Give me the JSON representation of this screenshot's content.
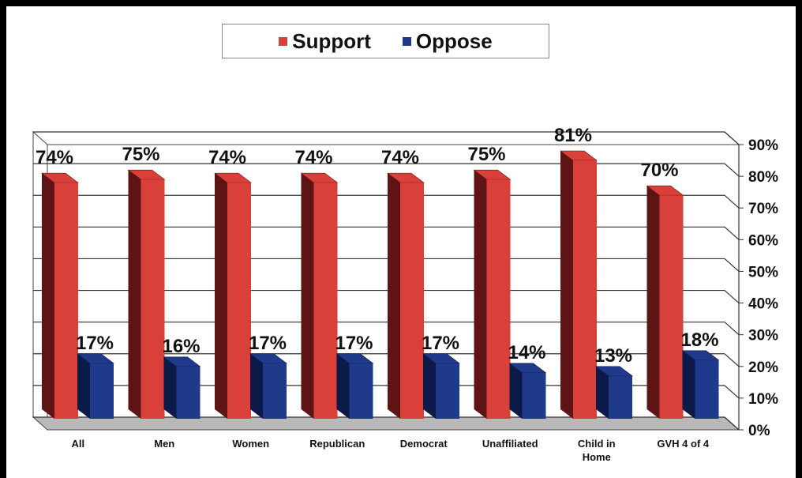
{
  "colors": {
    "support": "#d9403a",
    "support_dark": "#5e1414",
    "oppose": "#1f3a8a",
    "oppose_dark": "#0c1a4a",
    "background": "#ffffff"
  },
  "legend": {
    "support_label": "Support",
    "oppose_label": "Oppose"
  },
  "chart_data": {
    "type": "bar",
    "categories": [
      "All",
      "Men",
      "Women",
      "Republican",
      "Democrat",
      "Unaffiliated",
      "Child in Home",
      "GVH 4 of 4"
    ],
    "series": [
      {
        "name": "Support",
        "values": [
          74,
          75,
          74,
          74,
          74,
          75,
          81,
          70
        ]
      },
      {
        "name": "Oppose",
        "values": [
          17,
          16,
          17,
          17,
          17,
          14,
          13,
          18
        ]
      }
    ],
    "data_labels": {
      "Support": [
        "74%",
        "75%",
        "74%",
        "74%",
        "74%",
        "75%",
        "81%",
        "70%"
      ],
      "Oppose": [
        "17%",
        "16%",
        "17%",
        "17%",
        "17%",
        "14%",
        "13%",
        "18%"
      ]
    },
    "yticks": [
      "0%",
      "10%",
      "20%",
      "30%",
      "40%",
      "50%",
      "60%",
      "70%",
      "80%",
      "90%"
    ],
    "ylim": [
      0,
      90
    ],
    "y_axis_position": "right",
    "grid": true,
    "legend_position": "top"
  }
}
